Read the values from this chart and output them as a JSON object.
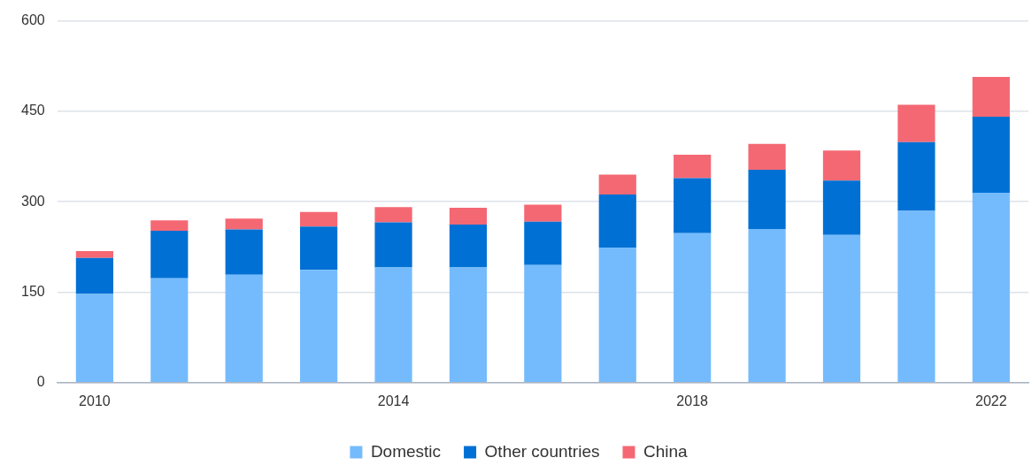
{
  "chart_data": {
    "type": "bar",
    "stacked": true,
    "categories": [
      "2010",
      null,
      null,
      null,
      "2014",
      null,
      null,
      null,
      "2018",
      null,
      null,
      null,
      "2022"
    ],
    "series": [
      {
        "name": "Domestic",
        "color": "#74bbfd",
        "values": [
          147,
          173,
          179,
          187,
          191,
          191,
          195,
          224,
          248,
          255,
          245,
          285,
          315
        ]
      },
      {
        "name": "Other countries",
        "color": "#0070d4",
        "values": [
          60,
          79,
          75,
          72,
          75,
          71,
          72,
          88,
          91,
          98,
          90,
          114,
          126
        ]
      },
      {
        "name": "China",
        "color": "#f46873",
        "values": [
          11,
          17,
          18,
          24,
          25,
          28,
          28,
          33,
          39,
          43,
          50,
          62,
          66
        ]
      }
    ],
    "ylim": [
      0,
      600
    ],
    "yticks": [
      0,
      150,
      300,
      450,
      600
    ],
    "grid": "y",
    "legend": "bottom"
  }
}
